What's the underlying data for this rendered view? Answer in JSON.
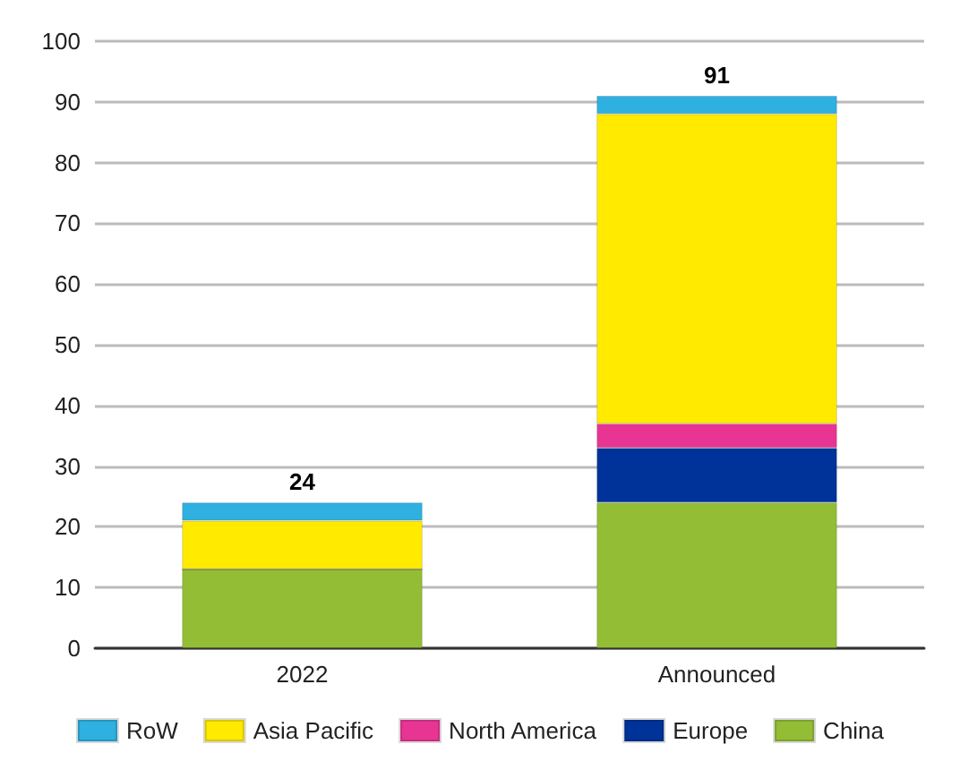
{
  "chart_data": {
    "type": "bar",
    "stacked": true,
    "categories": [
      "2022",
      "Announced"
    ],
    "series": [
      {
        "name": "China",
        "color": "#93bd35",
        "values": [
          13,
          24
        ]
      },
      {
        "name": "Europe",
        "color": "#003399",
        "values": [
          0,
          9
        ]
      },
      {
        "name": "North America",
        "color": "#e83594",
        "values": [
          0,
          4
        ]
      },
      {
        "name": "Asia Pacific",
        "color": "#ffea00",
        "values": [
          8,
          51
        ]
      },
      {
        "name": "RoW",
        "color": "#2eb0e0",
        "values": [
          3,
          3
        ]
      }
    ],
    "totals": [
      "24",
      "91"
    ],
    "ylim": [
      0,
      100
    ],
    "yticks": [
      0,
      10,
      20,
      30,
      40,
      50,
      60,
      70,
      80,
      90,
      100
    ],
    "grid": "y",
    "legend": "bottom"
  }
}
